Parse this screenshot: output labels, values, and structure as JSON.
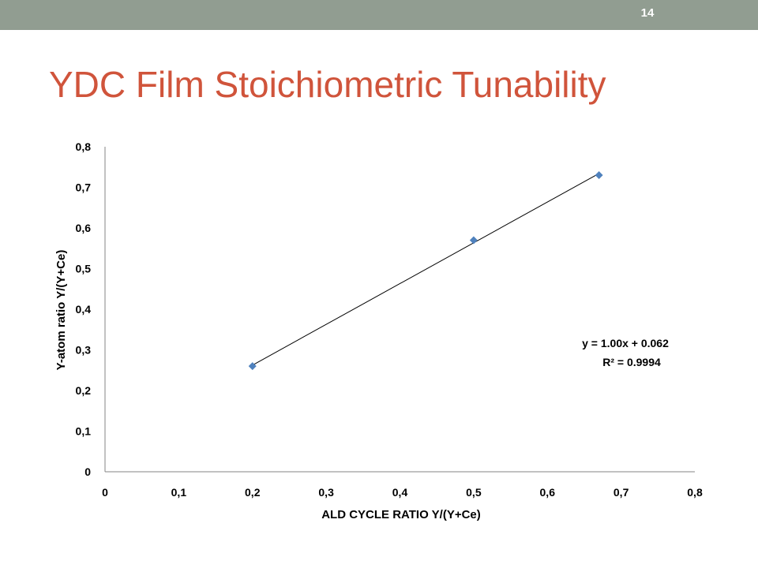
{
  "header": {
    "slide_number": "14",
    "bar_color": "#919d91"
  },
  "slide": {
    "title": "YDC Film Stoichiometric Tunability",
    "title_color": "#d0543b"
  },
  "chart_data": {
    "type": "scatter",
    "title": "",
    "xlabel": "ALD CYCLE RATIO Y/(Y+Ce)",
    "ylabel": "Y-atom ratio Y/(Y+Ce)",
    "xlim": [
      0,
      0.8
    ],
    "ylim": [
      0,
      0.8
    ],
    "x_ticks": [
      "0",
      "0,1",
      "0,2",
      "0,3",
      "0,4",
      "0,5",
      "0,6",
      "0,7",
      "0,8"
    ],
    "y_ticks": [
      "0",
      "0,1",
      "0,2",
      "0,3",
      "0,4",
      "0,5",
      "0,6",
      "0,7",
      "0,8"
    ],
    "grid": false,
    "marker": "diamond",
    "marker_color": "#4f81bd",
    "series": [
      {
        "x": [
          0.2,
          0.5,
          0.67
        ],
        "y": [
          0.26,
          0.57,
          0.73
        ]
      }
    ],
    "trendline": {
      "type": "linear",
      "x_range": [
        0.2,
        0.67
      ],
      "equation": "y = 1.00x + 0.062",
      "r_squared": "R² = 0.9994",
      "color": "#000000"
    }
  }
}
